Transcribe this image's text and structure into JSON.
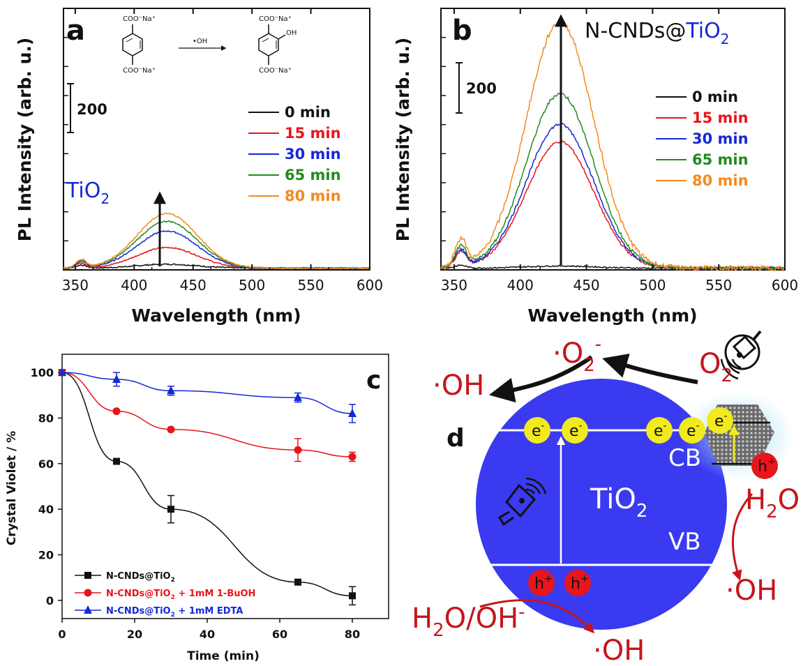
{
  "colors": {
    "black": "#111111",
    "red": "#e8151b",
    "blue": "#1528d6",
    "green": "#238a1f",
    "orange": "#f5891b",
    "dark_red": "#c5161c",
    "circle": "#3a3af0",
    "yellow": "#f2ea1d",
    "glow": "#a8dcf5"
  },
  "chart_data": [
    {
      "panel": "a",
      "type": "line",
      "xlabel": "Wavelength (nm)",
      "ylabel": "PL Intensity (arb. u.)",
      "xlim": [
        340,
        600
      ],
      "xticks": [
        350,
        400,
        450,
        500,
        550,
        600
      ],
      "scale_bar_label": "200",
      "sample_label": "TiO",
      "sample_sub": "2",
      "peak_wavelength": 428,
      "legend": [
        "0  min",
        "15 min",
        "30 min",
        "65 min",
        "80 min"
      ],
      "scheme": {
        "reactant_top": "COO⁻Na⁺",
        "reactant_bottom": "COO⁻Na⁺",
        "reagent": "•OH",
        "product_top": "COO⁻Na⁺",
        "product_oh": "OH",
        "product_bottom": "COO⁻Na⁺"
      },
      "series": [
        {
          "name": "0  min",
          "peak": 18
        },
        {
          "name": "15 min",
          "peak": 95
        },
        {
          "name": "30 min",
          "peak": 170
        },
        {
          "name": "65 min",
          "peak": 215
        },
        {
          "name": "80 min",
          "peak": 250
        }
      ]
    },
    {
      "panel": "b",
      "type": "line",
      "xlabel": "Wavelength (nm)",
      "ylabel": "PL Intensity (arb. u.)",
      "xlim": [
        340,
        600
      ],
      "xticks": [
        350,
        400,
        450,
        500,
        550,
        600
      ],
      "scale_bar_label": "200",
      "sample_label_main": "N-CNDs@",
      "sample_label_tio": "TiO",
      "sample_sub": "2",
      "peak_wavelength": 430,
      "legend": [
        "0  min",
        "15 min",
        "30 min",
        "65 min",
        "80 min"
      ],
      "series": [
        {
          "name": "0  min",
          "peak": 10
        },
        {
          "name": "15 min",
          "peak": 580
        },
        {
          "name": "30 min",
          "peak": 660
        },
        {
          "name": "65 min",
          "peak": 800
        },
        {
          "name": "80 min",
          "peak": 1130
        }
      ]
    },
    {
      "panel": "c",
      "type": "scatter",
      "xlabel": "Time (min)",
      "ylabel": "Crystal Violet / %",
      "xlim": [
        0,
        90
      ],
      "ylim": [
        -8,
        108
      ],
      "xticks": [
        0,
        20,
        40,
        60,
        80
      ],
      "yticks": [
        0,
        20,
        40,
        60,
        80,
        100
      ],
      "series": [
        {
          "name_main": "N-CNDs@TiO",
          "name_sub": "2",
          "name_suffix": "",
          "marker": "square",
          "x": [
            0,
            15,
            30,
            65,
            80
          ],
          "y": [
            100,
            61,
            40,
            8,
            2
          ],
          "err": [
            0,
            0,
            6,
            0,
            4
          ]
        },
        {
          "name_main": "N-CNDs@TiO",
          "name_sub": "2",
          "name_suffix": " + 1mM 1-BuOH",
          "marker": "circle",
          "x": [
            0,
            15,
            30,
            65,
            80
          ],
          "y": [
            100,
            83,
            75,
            66,
            63
          ],
          "err": [
            0,
            0,
            0,
            5,
            2
          ]
        },
        {
          "name_main": "N-CNDs@TiO",
          "name_sub": "2",
          "name_suffix": " + 1mM EDTA",
          "marker": "triangle",
          "x": [
            0,
            15,
            30,
            65,
            80
          ],
          "y": [
            100,
            97,
            92,
            89,
            82
          ],
          "err": [
            0,
            3,
            2,
            2,
            4
          ]
        }
      ]
    }
  ],
  "panel_d": {
    "label": "d",
    "cb": "CB",
    "vb": "VB",
    "tio": "TiO",
    "sub2": "2",
    "e": "e",
    "minus": "-",
    "h": "h",
    "plus": "+",
    "o2": "O",
    "dot_o2": "·O",
    "o2_super": "-",
    "oh": "·OH",
    "h2o": "H",
    "h2o_tail": "O",
    "h2o_oh": "H",
    "h2o_oh_mid": "O/OH",
    "h2o_oh_sup": "-"
  },
  "panel_c_label": "c"
}
